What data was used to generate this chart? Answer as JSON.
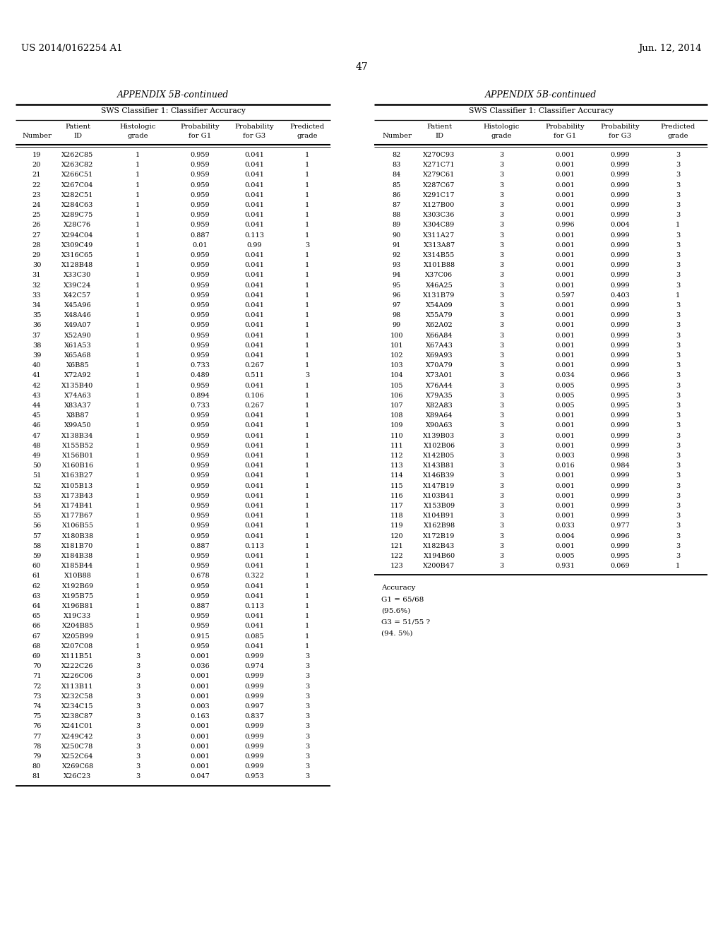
{
  "header_left": "US 2014/0162254 A1",
  "header_right": "Jun. 12, 2014",
  "page_number": "47",
  "appendix_title": "APPENDIX 5B-continued",
  "table_subtitle": "SWS Classifier 1: Classifier Accuracy",
  "col_headers_line1": [
    "",
    "Patient",
    "Histologic",
    "Probability",
    "Probability",
    "Predicted"
  ],
  "col_headers_line2": [
    "Number",
    "ID",
    "grade",
    "for G1",
    "for G3",
    "grade"
  ],
  "left_table": [
    [
      19,
      "X262C85",
      1,
      "0.959",
      "0.041",
      1
    ],
    [
      20,
      "X263C82",
      1,
      "0.959",
      "0.041",
      1
    ],
    [
      21,
      "X266C51",
      1,
      "0.959",
      "0.041",
      1
    ],
    [
      22,
      "X267C04",
      1,
      "0.959",
      "0.041",
      1
    ],
    [
      23,
      "X282C51",
      1,
      "0.959",
      "0.041",
      1
    ],
    [
      24,
      "X284C63",
      1,
      "0.959",
      "0.041",
      1
    ],
    [
      25,
      "X289C75",
      1,
      "0.959",
      "0.041",
      1
    ],
    [
      26,
      "X28C76",
      1,
      "0.959",
      "0.041",
      1
    ],
    [
      27,
      "X294C04",
      1,
      "0.887",
      "0.113",
      1
    ],
    [
      28,
      "X309C49",
      1,
      "0.01",
      "0.99",
      3
    ],
    [
      29,
      "X316C65",
      1,
      "0.959",
      "0.041",
      1
    ],
    [
      30,
      "X128B48",
      1,
      "0.959",
      "0.041",
      1
    ],
    [
      31,
      "X33C30",
      1,
      "0.959",
      "0.041",
      1
    ],
    [
      32,
      "X39C24",
      1,
      "0.959",
      "0.041",
      1
    ],
    [
      33,
      "X42C57",
      1,
      "0.959",
      "0.041",
      1
    ],
    [
      34,
      "X45A96",
      1,
      "0.959",
      "0.041",
      1
    ],
    [
      35,
      "X48A46",
      1,
      "0.959",
      "0.041",
      1
    ],
    [
      36,
      "X49A07",
      1,
      "0.959",
      "0.041",
      1
    ],
    [
      37,
      "X52A90",
      1,
      "0.959",
      "0.041",
      1
    ],
    [
      38,
      "X61A53",
      1,
      "0.959",
      "0.041",
      1
    ],
    [
      39,
      "X65A68",
      1,
      "0.959",
      "0.041",
      1
    ],
    [
      40,
      "X6B85",
      1,
      "0.733",
      "0.267",
      1
    ],
    [
      41,
      "X72A92",
      1,
      "0.489",
      "0.511",
      3
    ],
    [
      42,
      "X135B40",
      1,
      "0.959",
      "0.041",
      1
    ],
    [
      43,
      "X74A63",
      1,
      "0.894",
      "0.106",
      1
    ],
    [
      44,
      "X83A37",
      1,
      "0.733",
      "0.267",
      1
    ],
    [
      45,
      "X8B87",
      1,
      "0.959",
      "0.041",
      1
    ],
    [
      46,
      "X99A50",
      1,
      "0.959",
      "0.041",
      1
    ],
    [
      47,
      "X138B34",
      1,
      "0.959",
      "0.041",
      1
    ],
    [
      48,
      "X155B52",
      1,
      "0.959",
      "0.041",
      1
    ],
    [
      49,
      "X156B01",
      1,
      "0.959",
      "0.041",
      1
    ],
    [
      50,
      "X160B16",
      1,
      "0.959",
      "0.041",
      1
    ],
    [
      51,
      "X163B27",
      1,
      "0.959",
      "0.041",
      1
    ],
    [
      52,
      "X105B13",
      1,
      "0.959",
      "0.041",
      1
    ],
    [
      53,
      "X173B43",
      1,
      "0.959",
      "0.041",
      1
    ],
    [
      54,
      "X174B41",
      1,
      "0.959",
      "0.041",
      1
    ],
    [
      55,
      "X177B67",
      1,
      "0.959",
      "0.041",
      1
    ],
    [
      56,
      "X106B55",
      1,
      "0.959",
      "0.041",
      1
    ],
    [
      57,
      "X180B38",
      1,
      "0.959",
      "0.041",
      1
    ],
    [
      58,
      "X181B70",
      1,
      "0.887",
      "0.113",
      1
    ],
    [
      59,
      "X184B38",
      1,
      "0.959",
      "0.041",
      1
    ],
    [
      60,
      "X185B44",
      1,
      "0.959",
      "0.041",
      1
    ],
    [
      61,
      "X10B88",
      1,
      "0.678",
      "0.322",
      1
    ],
    [
      62,
      "X192B69",
      1,
      "0.959",
      "0.041",
      1
    ],
    [
      63,
      "X195B75",
      1,
      "0.959",
      "0.041",
      1
    ],
    [
      64,
      "X196B81",
      1,
      "0.887",
      "0.113",
      1
    ],
    [
      65,
      "X19C33",
      1,
      "0.959",
      "0.041",
      1
    ],
    [
      66,
      "X204B85",
      1,
      "0.959",
      "0.041",
      1
    ],
    [
      67,
      "X205B99",
      1,
      "0.915",
      "0.085",
      1
    ],
    [
      68,
      "X207C08",
      1,
      "0.959",
      "0.041",
      1
    ],
    [
      69,
      "X111B51",
      3,
      "0.001",
      "0.999",
      3
    ],
    [
      70,
      "X222C26",
      3,
      "0.036",
      "0.974",
      3
    ],
    [
      71,
      "X226C06",
      3,
      "0.001",
      "0.999",
      3
    ],
    [
      72,
      "X113B11",
      3,
      "0.001",
      "0.999",
      3
    ],
    [
      73,
      "X232C58",
      3,
      "0.001",
      "0.999",
      3
    ],
    [
      74,
      "X234C15",
      3,
      "0.003",
      "0.997",
      3
    ],
    [
      75,
      "X238C87",
      3,
      "0.163",
      "0.837",
      3
    ],
    [
      76,
      "X241C01",
      3,
      "0.001",
      "0.999",
      3
    ],
    [
      77,
      "X249C42",
      3,
      "0.001",
      "0.999",
      3
    ],
    [
      78,
      "X250C78",
      3,
      "0.001",
      "0.999",
      3
    ],
    [
      79,
      "X252C64",
      3,
      "0.001",
      "0.999",
      3
    ],
    [
      80,
      "X269C68",
      3,
      "0.001",
      "0.999",
      3
    ],
    [
      81,
      "X26C23",
      3,
      "0.047",
      "0.953",
      3
    ]
  ],
  "right_table": [
    [
      82,
      "X270C93",
      3,
      "0.001",
      "0.999",
      3
    ],
    [
      83,
      "X271C71",
      3,
      "0.001",
      "0.999",
      3
    ],
    [
      84,
      "X279C61",
      3,
      "0.001",
      "0.999",
      3
    ],
    [
      85,
      "X287C67",
      3,
      "0.001",
      "0.999",
      3
    ],
    [
      86,
      "X291C17",
      3,
      "0.001",
      "0.999",
      3
    ],
    [
      87,
      "X127B00",
      3,
      "0.001",
      "0.999",
      3
    ],
    [
      88,
      "X303C36",
      3,
      "0.001",
      "0.999",
      3
    ],
    [
      89,
      "X304C89",
      3,
      "0.996",
      "0.004",
      1
    ],
    [
      90,
      "X311A27",
      3,
      "0.001",
      "0.999",
      3
    ],
    [
      91,
      "X313A87",
      3,
      "0.001",
      "0.999",
      3
    ],
    [
      92,
      "X314B55",
      3,
      "0.001",
      "0.999",
      3
    ],
    [
      93,
      "X101B88",
      3,
      "0.001",
      "0.999",
      3
    ],
    [
      94,
      "X37C06",
      3,
      "0.001",
      "0.999",
      3
    ],
    [
      95,
      "X46A25",
      3,
      "0.001",
      "0.999",
      3
    ],
    [
      96,
      "X131B79",
      3,
      "0.597",
      "0.403",
      1
    ],
    [
      97,
      "X54A09",
      3,
      "0.001",
      "0.999",
      3
    ],
    [
      98,
      "X55A79",
      3,
      "0.001",
      "0.999",
      3
    ],
    [
      99,
      "X62A02",
      3,
      "0.001",
      "0.999",
      3
    ],
    [
      100,
      "X66A84",
      3,
      "0.001",
      "0.999",
      3
    ],
    [
      101,
      "X67A43",
      3,
      "0.001",
      "0.999",
      3
    ],
    [
      102,
      "X69A93",
      3,
      "0.001",
      "0.999",
      3
    ],
    [
      103,
      "X70A79",
      3,
      "0.001",
      "0.999",
      3
    ],
    [
      104,
      "X73A01",
      3,
      "0.034",
      "0.966",
      3
    ],
    [
      105,
      "X76A44",
      3,
      "0.005",
      "0.995",
      3
    ],
    [
      106,
      "X79A35",
      3,
      "0.005",
      "0.995",
      3
    ],
    [
      107,
      "X82A83",
      3,
      "0.005",
      "0.995",
      3
    ],
    [
      108,
      "X89A64",
      3,
      "0.001",
      "0.999",
      3
    ],
    [
      109,
      "X90A63",
      3,
      "0.001",
      "0.999",
      3
    ],
    [
      110,
      "X139B03",
      3,
      "0.001",
      "0.999",
      3
    ],
    [
      111,
      "X102B06",
      3,
      "0.001",
      "0.999",
      3
    ],
    [
      112,
      "X142B05",
      3,
      "0.003",
      "0.998",
      3
    ],
    [
      113,
      "X143B81",
      3,
      "0.016",
      "0.984",
      3
    ],
    [
      114,
      "X146B39",
      3,
      "0.001",
      "0.999",
      3
    ],
    [
      115,
      "X147B19",
      3,
      "0.001",
      "0.999",
      3
    ],
    [
      116,
      "X103B41",
      3,
      "0.001",
      "0.999",
      3
    ],
    [
      117,
      "X153B09",
      3,
      "0.001",
      "0.999",
      3
    ],
    [
      118,
      "X104B91",
      3,
      "0.001",
      "0.999",
      3
    ],
    [
      119,
      "X162B98",
      3,
      "0.033",
      "0.977",
      3
    ],
    [
      120,
      "X172B19",
      3,
      "0.004",
      "0.996",
      3
    ],
    [
      121,
      "X182B43",
      3,
      "0.001",
      "0.999",
      3
    ],
    [
      122,
      "X194B60",
      3,
      "0.005",
      "0.995",
      3
    ],
    [
      123,
      "X200B47",
      3,
      "0.931",
      "0.069",
      1
    ]
  ],
  "accuracy_text": [
    "Accuracy",
    "G1 = 65/68",
    "(95.6%)",
    "G3 = 51/55 ?",
    "(94. 5%)"
  ]
}
